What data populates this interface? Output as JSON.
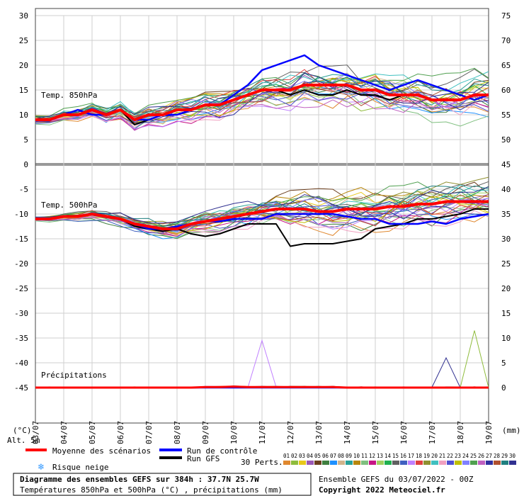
{
  "chart_data": {
    "type": "line",
    "left_axis_ticks": [
      "30",
      "25",
      "20",
      "15",
      "10",
      "5",
      "0",
      "-5",
      "-10",
      "-15",
      "-20",
      "-25",
      "-30",
      "-35",
      "-40",
      "-45"
    ],
    "right_axis_ticks_upper": [
      "75",
      "70",
      "65",
      "60",
      "55",
      "50",
      "45"
    ],
    "right_axis_ticks_lower": [
      "40",
      "35",
      "30",
      "25",
      "20",
      "15",
      "10",
      "5",
      "0"
    ],
    "left_unit": "(°C)",
    "right_unit": "(mm)",
    "alt_label": "Alt. 5m",
    "x_labels": [
      "03/07",
      "04/07",
      "05/07",
      "06/07",
      "07/07",
      "08/07",
      "09/07",
      "10/07",
      "11/07",
      "12/07",
      "13/07",
      "14/07",
      "15/07",
      "16/07",
      "17/07",
      "18/07",
      "19/07"
    ],
    "panel_labels": {
      "t850": "Temp. 850hPa",
      "t500": "Temp. 500hPa",
      "precip": "Précipitations"
    },
    "t850_mean": [
      9,
      9,
      10,
      10,
      11,
      10,
      11,
      9,
      10,
      10,
      11,
      11,
      12,
      12,
      13,
      14,
      15,
      15,
      15,
      16,
      16,
      16,
      16,
      15,
      15,
      14,
      14,
      14,
      13,
      13,
      13,
      14,
      14
    ],
    "t850_control": [
      9,
      9,
      10,
      11,
      10,
      10,
      11,
      9,
      9,
      10,
      10,
      11,
      12,
      12,
      14,
      16,
      19,
      20,
      21,
      22,
      20,
      19,
      18,
      17,
      16,
      15,
      16,
      17,
      16,
      15,
      14,
      13,
      14
    ],
    "t850_gfs": [
      9,
      9,
      10,
      11,
      10,
      10,
      11,
      8,
      9,
      10,
      11,
      11,
      12,
      12,
      13,
      14,
      15,
      15,
      14,
      15,
      14,
      14,
      15,
      14,
      14,
      13,
      14,
      14,
      13,
      13,
      13,
      14,
      14
    ],
    "t500_mean": [
      -11,
      -11,
      -10.5,
      -10.5,
      -10,
      -10.5,
      -11,
      -12,
      -12.5,
      -13,
      -13,
      -12,
      -11.5,
      -11,
      -10.5,
      -10,
      -9.5,
      -9,
      -9,
      -9,
      -9.5,
      -9.5,
      -9,
      -9,
      -9,
      -8.5,
      -8.5,
      -8,
      -8,
      -7.5,
      -7.5,
      -7.5,
      -7.5
    ],
    "t500_control": [
      -11,
      -11,
      -10.5,
      -10.5,
      -10,
      -10.5,
      -11,
      -12,
      -13,
      -13,
      -12.5,
      -12,
      -11.5,
      -11.5,
      -11,
      -11,
      -11,
      -10,
      -10,
      -10,
      -10,
      -10,
      -10.5,
      -11,
      -11,
      -12,
      -12,
      -12,
      -11.5,
      -12,
      -11,
      -10.5,
      -10
    ],
    "t500_gfs": [
      -11,
      -11,
      -10.5,
      -10.5,
      -10,
      -10.5,
      -11,
      -12.5,
      -13,
      -13.5,
      -13,
      -14,
      -14.5,
      -14,
      -13,
      -12,
      -12,
      -12,
      -16.5,
      -16,
      -16,
      -16,
      -15.5,
      -15,
      -13,
      -12.5,
      -12,
      -11,
      -11,
      -10.5,
      -10,
      -9,
      -9
    ],
    "precip_mean": [
      0,
      0,
      0,
      0,
      0,
      0,
      0,
      0,
      0,
      0,
      0,
      0,
      0.1,
      0.1,
      0.2,
      0.1,
      0.1,
      0.1,
      0.1,
      0.1,
      0.1,
      0.1,
      0,
      0,
      0,
      0,
      0,
      0,
      0,
      0,
      0,
      0,
      0
    ],
    "precip_peaks": [
      {
        "x": 16,
        "mm": 9.5
      },
      {
        "x": 29,
        "mm": 6
      },
      {
        "x": 31,
        "mm": 11.5
      }
    ],
    "legend": {
      "mean": "Moyenne des scénarios",
      "control": "Run de contrôle",
      "gfs": "Run GFS",
      "snow": "Risque neige",
      "perts_label": "30 Perts.",
      "pert_ids": [
        "01",
        "02",
        "03",
        "04",
        "05",
        "06",
        "07",
        "08",
        "09",
        "10",
        "11",
        "12",
        "13",
        "14",
        "15",
        "16",
        "17",
        "18",
        "19",
        "20",
        "21",
        "22",
        "23",
        "24",
        "25",
        "26",
        "27",
        "28",
        "29",
        "30"
      ]
    },
    "colors": {
      "mean": "#ff0000",
      "control": "#0000ff",
      "gfs": "#000000",
      "perts": [
        "#e0882f",
        "#8fbc3c",
        "#e8c81a",
        "#9b59b6",
        "#6b3e1e",
        "#3f7f3f",
        "#1e90ff",
        "#d2b48c",
        "#2aa198",
        "#b8860b",
        "#7fbf7f",
        "#c71585",
        "#a0d060",
        "#20b050",
        "#606060",
        "#4060c0",
        "#c080ff",
        "#e04040",
        "#909030",
        "#40c0c0",
        "#f0a0c0",
        "#5050d0",
        "#c0c000",
        "#8080ff",
        "#50a050",
        "#c060c0",
        "#3030a0",
        "#b05030",
        "#208080",
        "#303090"
      ]
    },
    "footer_title": "Diagramme des ensembles GEFS sur 384h : 37.7N 25.7W",
    "footer_sub": "Températures 850hPa et 500hPa (°C) , précipitations (mm)",
    "run_info": "Ensemble GEFS du 03/07/2022 - 00Z",
    "copyright": "Copyright 2022 Meteociel.fr"
  }
}
